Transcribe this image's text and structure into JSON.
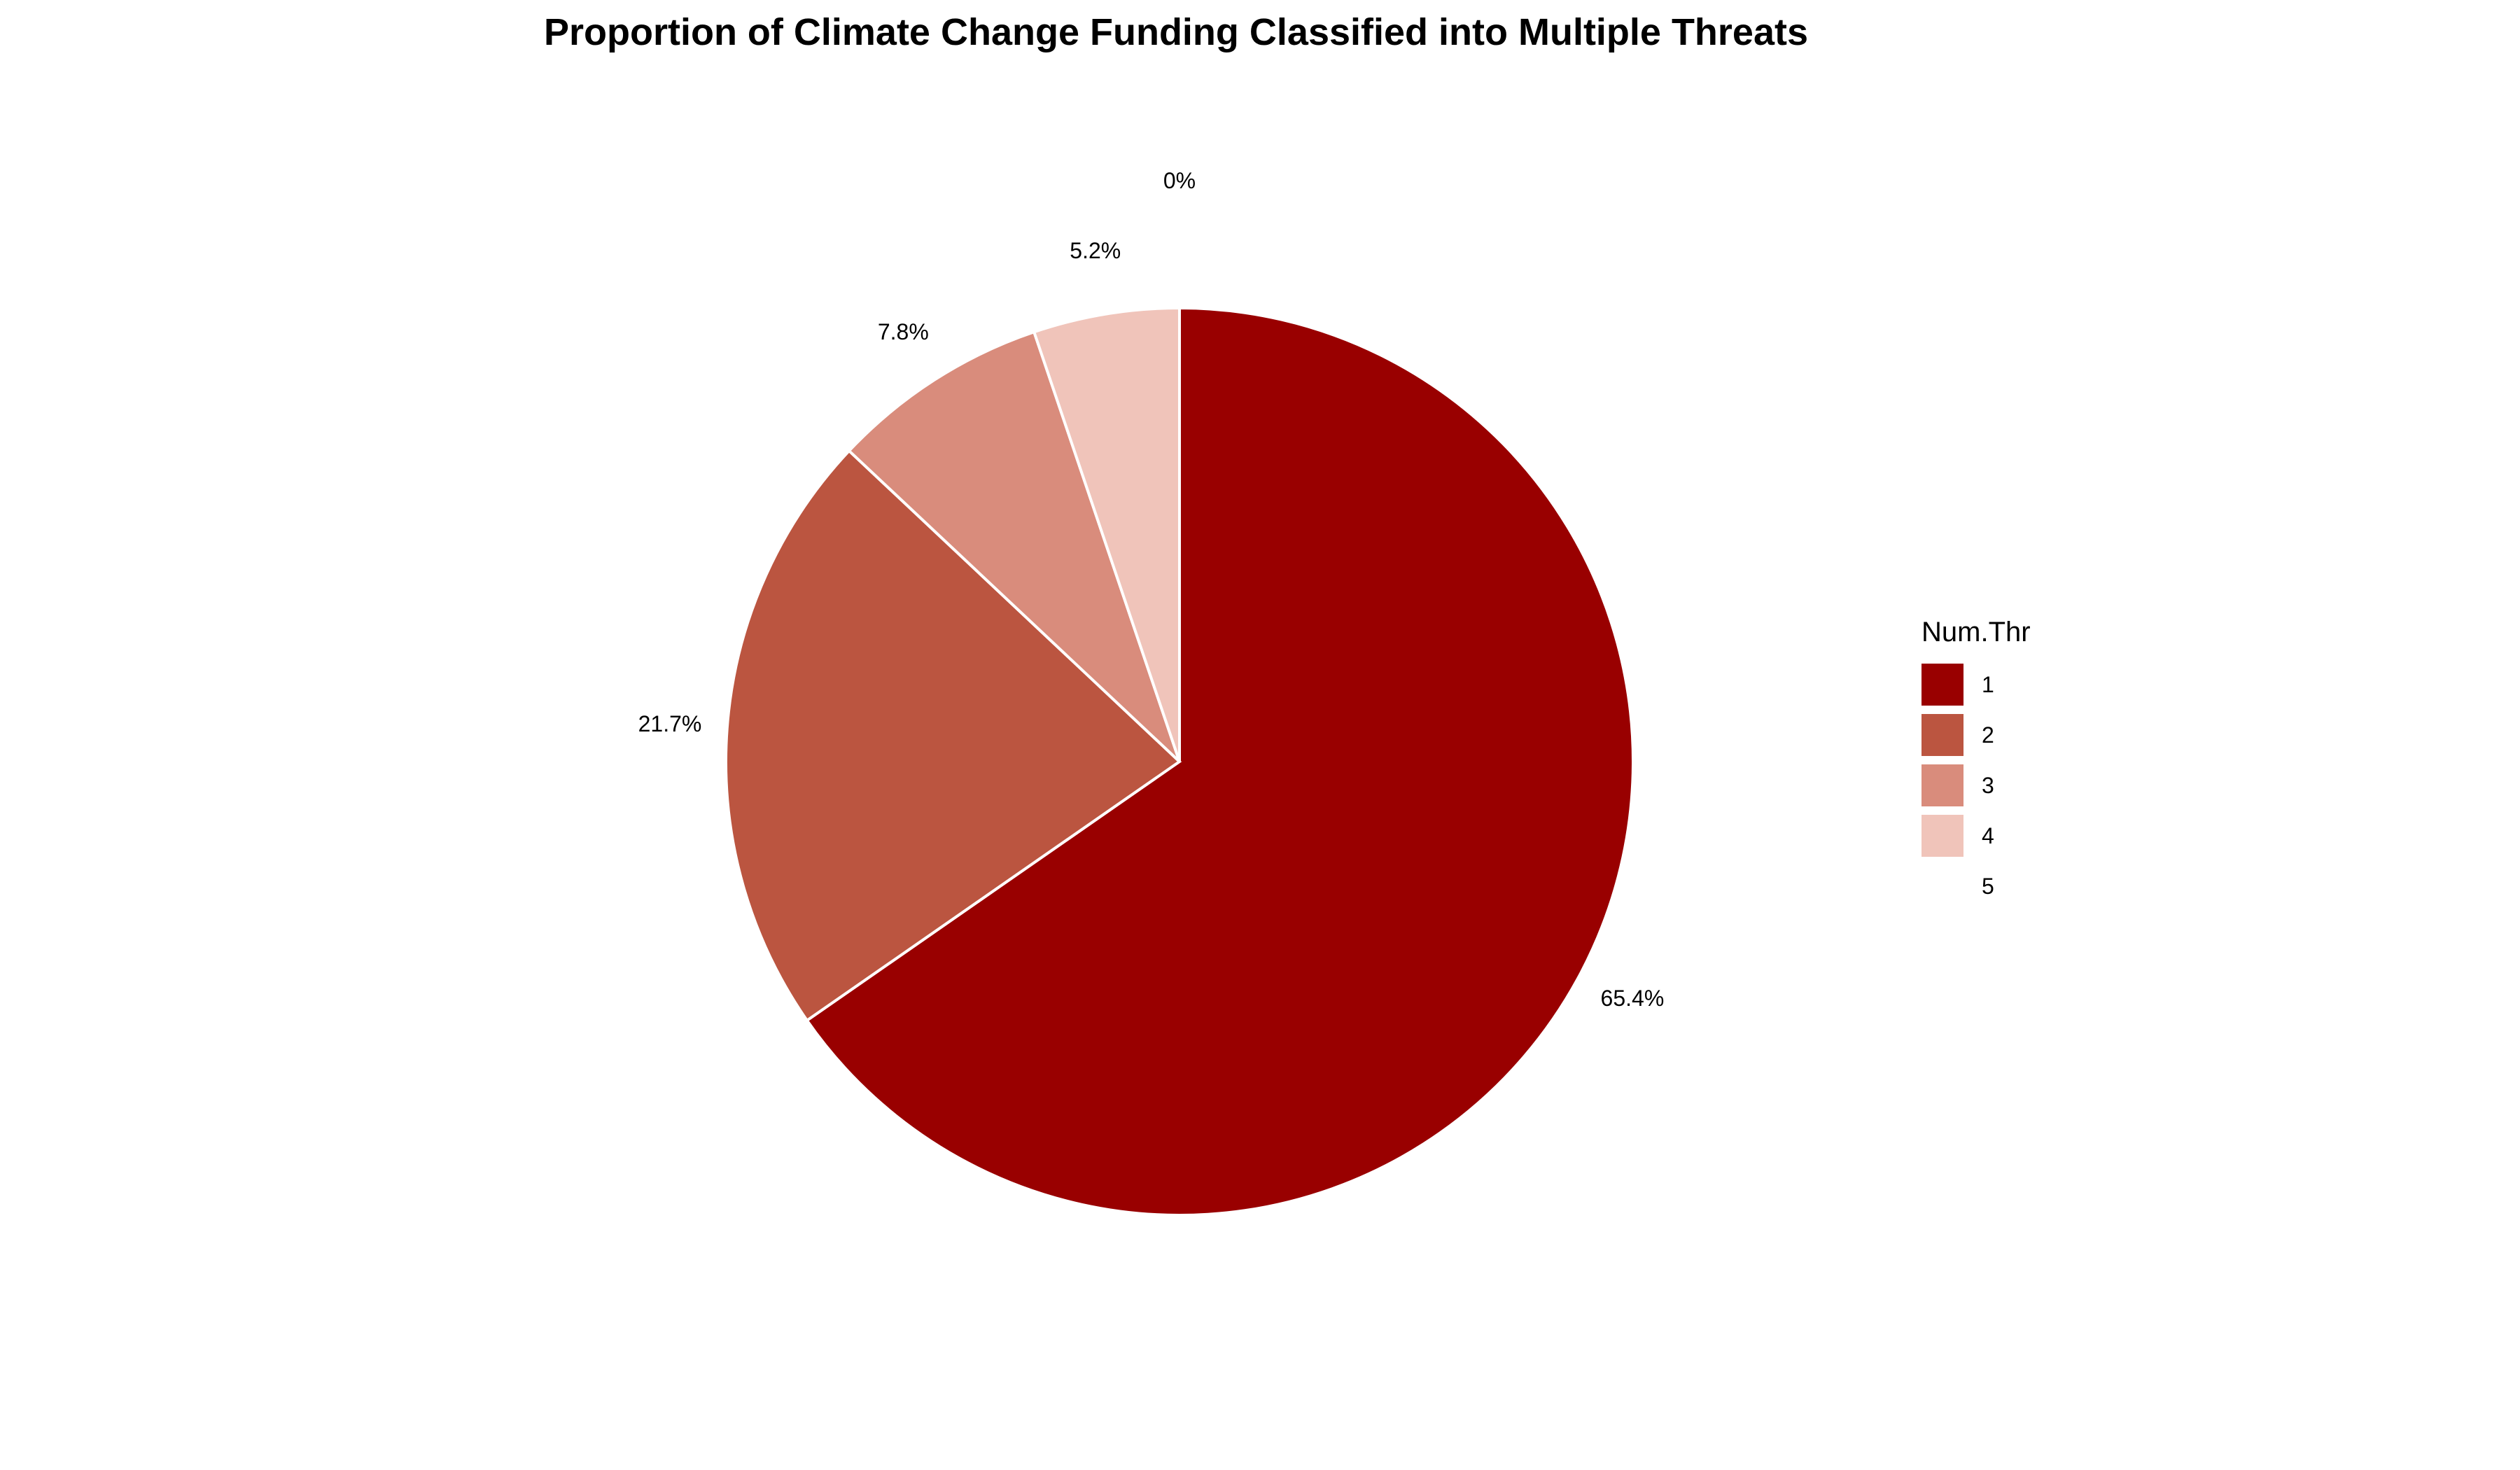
{
  "chart_data": {
    "type": "pie",
    "title": "Proportion of Climate Change Funding Classified into Multiple Threats",
    "legend_title": "Num.Thr",
    "legend_position": "right",
    "start_angle_deg": 0,
    "direction": "clockwise",
    "slices": [
      {
        "category": "1",
        "value": 65.4,
        "label": "65.4%",
        "color": "#990000"
      },
      {
        "category": "2",
        "value": 21.7,
        "label": "21.7%",
        "color": "#BB5540"
      },
      {
        "category": "3",
        "value": 7.8,
        "label": "7.8%",
        "color": "#D98C7C"
      },
      {
        "category": "4",
        "value": 5.2,
        "label": "5.2%",
        "color": "#F0C4BA"
      },
      {
        "category": "5",
        "value": 0,
        "label": "0%",
        "color": "#FFFFFF"
      }
    ]
  }
}
